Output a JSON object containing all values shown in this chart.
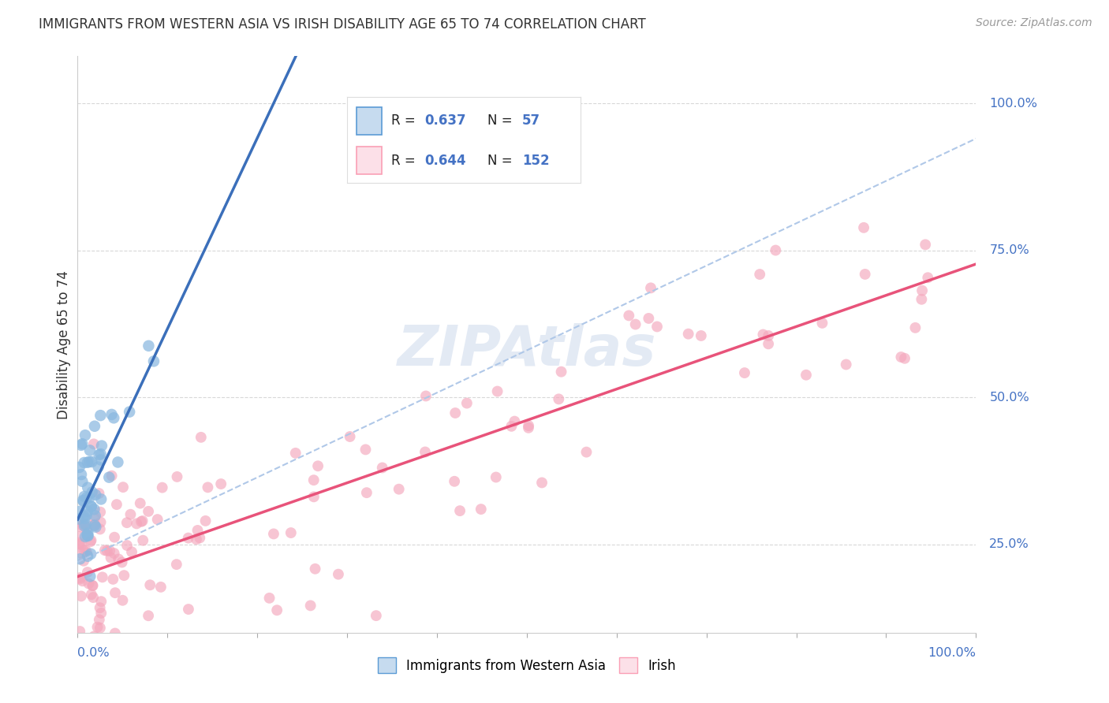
{
  "title": "IMMIGRANTS FROM WESTERN ASIA VS IRISH DISABILITY AGE 65 TO 74 CORRELATION CHART",
  "source": "Source: ZipAtlas.com",
  "ylabel": "Disability Age 65 to 74",
  "legend_label1": "Immigrants from Western Asia",
  "legend_label2": "Irish",
  "r1": 0.637,
  "n1": 57,
  "r2": 0.644,
  "n2": 152,
  "watermark": "ZIPAtlas",
  "blue_dot_color": "#89b8e0",
  "pink_dot_color": "#f4a7bc",
  "blue_line_color": "#3b6fba",
  "pink_line_color": "#e8537a",
  "dashed_line_color": "#b0c8e8",
  "grid_color": "#d8d8d8",
  "axis_label_color": "#4472c4",
  "text_color": "#333333",
  "source_color": "#999999",
  "legend_border_color": "#dddddd",
  "blue_legend_fill": "#c6dbef",
  "blue_legend_edge": "#5b9bd5",
  "pink_legend_fill": "#fce0e8",
  "pink_legend_edge": "#fa9fb5",
  "ytick_positions": [
    25,
    50,
    75,
    100
  ],
  "ytick_labels": [
    "25.0%",
    "50.0%",
    "75.0%",
    "100.0%"
  ],
  "watermark_text": "ZIPAtlas"
}
